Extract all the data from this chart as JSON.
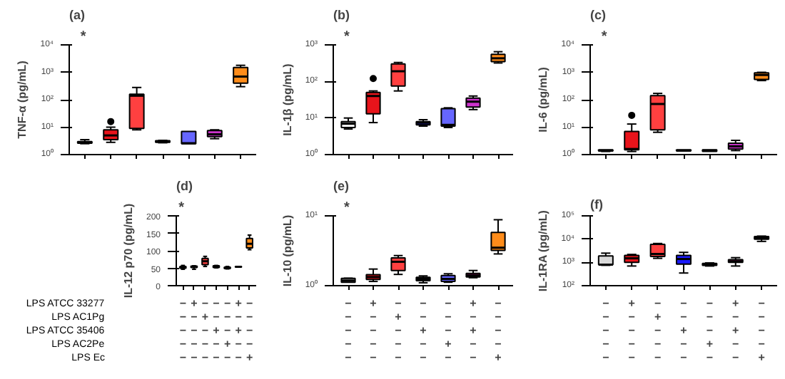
{
  "chart_data": [
    {
      "type": "box",
      "title": "(a)",
      "ylabel": "TNF-α (pg/mL)",
      "log": true,
      "grid": false,
      "categories": [
        null,
        null,
        null,
        null,
        null,
        null,
        null
      ],
      "ylim": [
        1,
        10000
      ],
      "yticks": [
        {
          "value": 1,
          "label": "10⁰"
        },
        {
          "value": 10,
          "label": "10¹"
        },
        {
          "value": 100,
          "label": "10²"
        },
        {
          "value": 1000,
          "label": "10³"
        },
        {
          "value": 10000,
          "label": "10⁴"
        }
      ],
      "colors": [
        "#7f7f7f",
        "#e8141b",
        "#ff4040",
        "#1a1a8c",
        "#6666ff",
        "#cc33cc",
        "#ff8c1a"
      ],
      "boxes": [
        {
          "low": 2.5,
          "q1": 2.6,
          "median": 2.8,
          "q3": 3.0,
          "high": 3.5
        },
        {
          "low": 2.8,
          "q1": 3.5,
          "median": 5,
          "q3": 8,
          "high": 10,
          "outliers": [
            16
          ]
        },
        {
          "low": 8,
          "q1": 9,
          "median": 140,
          "q3": 160,
          "high": 280
        },
        {
          "low": 2.7,
          "q1": 2.8,
          "median": 3,
          "q3": 3.2,
          "high": 3.3
        },
        {
          "low": 2.5,
          "q1": 2.5,
          "median": 2.6,
          "q3": 7,
          "high": 7
        },
        {
          "low": 3.8,
          "q1": 4.5,
          "median": 5.5,
          "q3": 7.5,
          "high": 8
        },
        {
          "low": 300,
          "q1": 400,
          "median": 700,
          "q3": 1500,
          "high": 1800
        }
      ],
      "annotations": [
        "*"
      ]
    },
    {
      "type": "box",
      "title": "(b)",
      "ylabel": "IL-1β (pg/mL)",
      "log": true,
      "grid": false,
      "categories": [
        null,
        null,
        null,
        null,
        null,
        null,
        null
      ],
      "ylim": [
        1,
        1000
      ],
      "yticks": [
        {
          "value": 1,
          "label": "10⁰"
        },
        {
          "value": 10,
          "label": "10¹"
        },
        {
          "value": 100,
          "label": "10²"
        },
        {
          "value": 1000,
          "label": "10³"
        }
      ],
      "colors": [
        "#ffffff",
        "#e8141b",
        "#ff4040",
        "#1a1a8c",
        "#6666ff",
        "#cc33cc",
        "#ff8c1a"
      ],
      "boxes": [
        {
          "low": 5,
          "q1": 5.5,
          "median": 7,
          "q3": 8,
          "high": 10
        },
        {
          "low": 7.5,
          "q1": 13,
          "median": 40,
          "q3": 50,
          "high": 55,
          "outliers": [
            120
          ]
        },
        {
          "low": 55,
          "q1": 75,
          "median": 190,
          "q3": 300,
          "high": 330
        },
        {
          "low": 6,
          "q1": 6.5,
          "median": 7.5,
          "q3": 8,
          "high": 9
        },
        {
          "low": 5.5,
          "q1": 6,
          "median": 6.5,
          "q3": 18,
          "high": 19
        },
        {
          "low": 17,
          "q1": 20,
          "median": 28,
          "q3": 35,
          "high": 40
        },
        {
          "low": 320,
          "q1": 350,
          "median": 430,
          "q3": 550,
          "high": 650
        }
      ],
      "annotations": [
        "*"
      ]
    },
    {
      "type": "box",
      "title": "(c)",
      "ylabel": "IL-6 (pg/mL)",
      "log": true,
      "grid": false,
      "categories": [
        null,
        null,
        null,
        null,
        null,
        null,
        null
      ],
      "ylim": [
        1,
        10000
      ],
      "yticks": [
        {
          "value": 1,
          "label": "10⁰"
        },
        {
          "value": 10,
          "label": "10¹"
        },
        {
          "value": 100,
          "label": "10²"
        },
        {
          "value": 1000,
          "label": "10³"
        },
        {
          "value": 10000,
          "label": "10⁴"
        }
      ],
      "colors": [
        "#7f7f7f",
        "#e8141b",
        "#ff4040",
        "#1a1a8c",
        "#6666ff",
        "#cc33cc",
        "#ff8c1a"
      ],
      "boxes": [
        {
          "low": 1.3,
          "q1": 1.35,
          "median": 1.4,
          "q3": 1.5,
          "high": 1.5
        },
        {
          "low": 1.3,
          "q1": 1.5,
          "median": 1.6,
          "q3": 7,
          "high": 13,
          "outliers": [
            27
          ]
        },
        {
          "low": 6.5,
          "q1": 8,
          "median": 70,
          "q3": 140,
          "high": 170
        },
        {
          "low": 1.35,
          "q1": 1.35,
          "median": 1.4,
          "q3": 1.5,
          "high": 1.5
        },
        {
          "low": 1.3,
          "q1": 1.3,
          "median": 1.4,
          "q3": 1.5,
          "high": 1.5
        },
        {
          "low": 1.4,
          "q1": 1.6,
          "median": 2,
          "q3": 2.6,
          "high": 3.3
        },
        {
          "low": 500,
          "q1": 550,
          "median": 800,
          "q3": 950,
          "high": 1000
        }
      ],
      "annotations": [
        "*"
      ]
    },
    {
      "type": "box",
      "title": "(d)",
      "ylabel": "IL-12 p70 (pg/mL)",
      "grid": false,
      "categories": [
        "−\n−\n−\n−\n−",
        "+\n−\n−\n−\n−",
        "−\n+\n−\n−\n−",
        "−\n−\n+\n−\n−",
        "−\n−\n−\n+\n−",
        "+\n−\n+\n−\n−",
        "−\n−\n−\n−\n+"
      ],
      "ylim": [
        0,
        200
      ],
      "yticks": [
        0,
        50,
        100,
        150,
        200
      ],
      "colors": [
        "#262626",
        "#e8141b",
        "#ff4040",
        "#1a1a8c",
        "#2a2a99",
        "#990066",
        "#ff8c1a"
      ],
      "boxes": [
        {
          "low": 47,
          "q1": 50,
          "median": 52,
          "q3": 55,
          "high": 58
        },
        {
          "low": 47,
          "q1": 52,
          "median": 54,
          "q3": 56,
          "high": 57
        },
        {
          "low": 55,
          "q1": 60,
          "median": 70,
          "q3": 78,
          "high": 84
        },
        {
          "low": 51,
          "q1": 52,
          "median": 54,
          "q3": 57,
          "high": 58
        },
        {
          "low": 48,
          "q1": 49,
          "median": 51,
          "q3": 53,
          "high": 55
        },
        {
          "low": 53,
          "q1": 53,
          "median": 54,
          "q3": 55,
          "high": 55
        },
        {
          "low": 103,
          "q1": 108,
          "median": 120,
          "q3": 135,
          "high": 145
        }
      ],
      "annotations": [
        "*"
      ]
    },
    {
      "type": "box",
      "title": "(e)",
      "ylabel": "IL-10 (pg/mL)",
      "log": true,
      "grid": false,
      "categories": [
        "−\n−\n−\n−\n−",
        "+\n−\n−\n−\n−",
        "−\n+\n−\n−\n−",
        "−\n−\n+\n−\n−",
        "−\n−\n−\n+\n−",
        "+\n−\n+\n−\n−",
        "−\n−\n−\n−\n+"
      ],
      "ylim": [
        1,
        10
      ],
      "yticks": [
        {
          "value": 1,
          "label": "10⁰"
        },
        {
          "value": 10,
          "label": "10¹"
        }
      ],
      "colors": [
        "#9a9a9a",
        "#e8141b",
        "#ff4040",
        "#1a1a8c",
        "#6666ff",
        "#990066",
        "#ff8c1a"
      ],
      "boxes": [
        {
          "low": 1.12,
          "q1": 1.12,
          "median": 1.18,
          "q3": 1.27,
          "high": 1.28
        },
        {
          "low": 1.15,
          "q1": 1.23,
          "median": 1.33,
          "q3": 1.44,
          "high": 1.73
        },
        {
          "low": 1.45,
          "q1": 1.65,
          "median": 2.2,
          "q3": 2.5,
          "high": 2.7
        },
        {
          "low": 1.1,
          "q1": 1.18,
          "median": 1.25,
          "q3": 1.32,
          "high": 1.38
        },
        {
          "low": 1.12,
          "q1": 1.15,
          "median": 1.25,
          "q3": 1.4,
          "high": 1.48
        },
        {
          "low": 1.3,
          "q1": 1.33,
          "median": 1.4,
          "q3": 1.5,
          "high": 1.65
        },
        {
          "low": 2.85,
          "q1": 3.2,
          "median": 3.5,
          "q3": 5.8,
          "high": 8.8
        }
      ],
      "annotations": [
        "*"
      ]
    },
    {
      "type": "box",
      "title": "(f)",
      "ylabel": "IL-1RA (pg/mL)",
      "log": true,
      "grid": false,
      "categories": [
        "−\n−\n−\n−\n−",
        "+\n−\n−\n−\n−",
        "−\n+\n−\n−\n−",
        "−\n−\n+\n−\n−",
        "−\n−\n−\n+\n−",
        "+\n−\n+\n−\n−",
        "−\n−\n−\n−\n+"
      ],
      "ylim": [
        100,
        100000
      ],
      "yticks": [
        {
          "value": 100,
          "label": "10²"
        },
        {
          "value": 1000,
          "label": "10³"
        },
        {
          "value": 10000,
          "label": "10⁴"
        },
        {
          "value": 100000,
          "label": "10⁵"
        }
      ],
      "colors": [
        "#d9d9d9",
        "#e8141b",
        "#ff4040",
        "#1a1aff",
        "#1a1a8c",
        "#990066",
        "#262626"
      ],
      "boxes": [
        {
          "low": 750,
          "q1": 800,
          "median": 800,
          "q3": 1900,
          "high": 2500
        },
        {
          "low": 700,
          "q1": 1000,
          "median": 1500,
          "q3": 2000,
          "high": 2200
        },
        {
          "low": 1500,
          "q1": 1800,
          "median": 2300,
          "q3": 6000,
          "high": 6500
        },
        {
          "low": 350,
          "q1": 850,
          "median": 1400,
          "q3": 2000,
          "high": 2700
        },
        {
          "low": 700,
          "q1": 750,
          "median": 800,
          "q3": 900,
          "high": 950
        },
        {
          "low": 700,
          "q1": 1000,
          "median": 1100,
          "q3": 1300,
          "high": 1600
        },
        {
          "low": 8000,
          "q1": 10000,
          "median": 11500,
          "q3": 13000,
          "high": 13500
        }
      ]
    },
    {
      "type": "other",
      "annotations": [
        "LPS ATCC 33277",
        "LPS AC1Pg",
        "LPS ATCC 35406",
        "LPS AC2Pe",
        "LPS Ec"
      ]
    }
  ]
}
